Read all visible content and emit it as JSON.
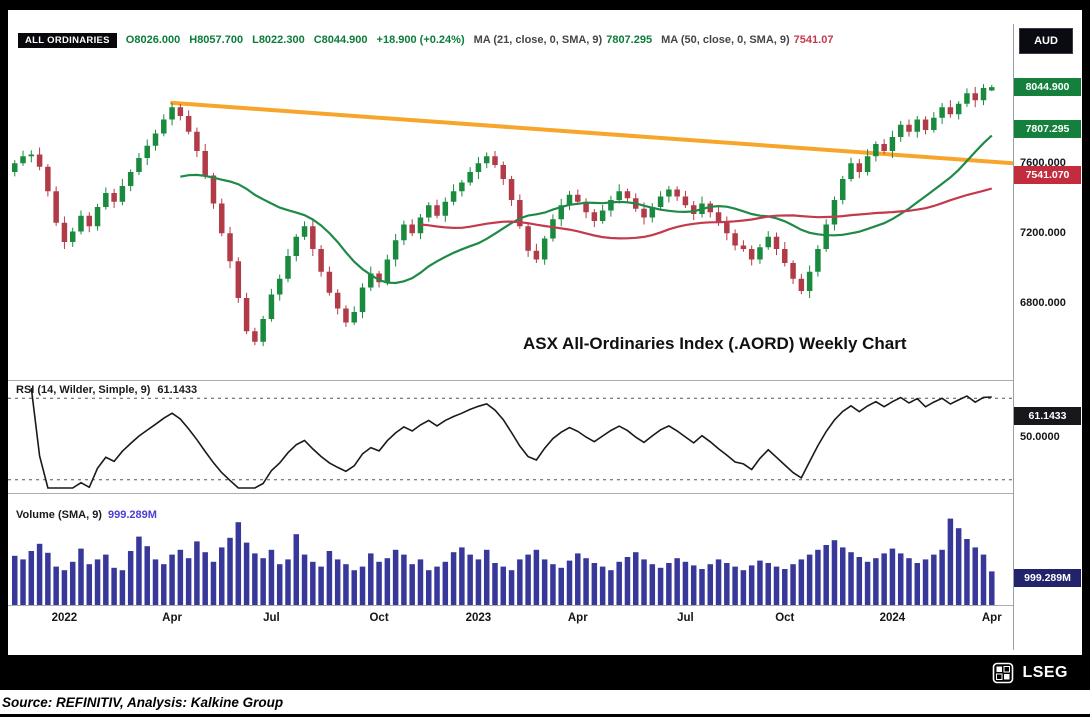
{
  "header": {
    "instrument": "ALL ORDINARIES",
    "ohlc": [
      {
        "k": "O",
        "v": "8026.000"
      },
      {
        "k": "H",
        "v": "8057.700"
      },
      {
        "k": "L",
        "v": "8022.300"
      },
      {
        "k": "C",
        "v": "8044.900"
      }
    ],
    "change": "+18.900 (+0.24%)",
    "ma21_label": "MA (21, close, 0, SMA, 9)",
    "ma21_value": "7807.295",
    "ma50_label": "MA (50, close, 0, SMA, 9)",
    "ma50_value": "7541.07",
    "currency_badge": "AUD"
  },
  "price_scale": {
    "last_badge": "8044.900",
    "ma21_badge": "7807.295",
    "gridline_7600": "7600.000",
    "ma50_badge": "7541.070",
    "gridline_7200": "7200.000",
    "gridline_6800": "6800.000"
  },
  "rsi_panel": {
    "label": "RSI (14, Wilder, Simple, 9)",
    "value": "61.1433",
    "badge": "61.1433",
    "gridline_50": "50.0000"
  },
  "volume_panel": {
    "label": "Volume (SMA, 9)",
    "value": "999.289M",
    "badge": "999.289M"
  },
  "annotation": "ASX All-Ordinaries Index (.AORD) Weekly Chart",
  "footer": {
    "lseg": "LSEG",
    "source_line": "Source: REFINITIV, Analysis: Kalkine Group"
  },
  "ui_colors": {
    "badge_green": "#15803d",
    "badge_red": "#c22c3d",
    "badge_navy": "#23236b",
    "badge_black": "#17171c",
    "legend_green": "#0b7c3a",
    "legend_red": "#c23a4c",
    "volume_value_blue": "#4a3fd0"
  },
  "chart_data": [
    {
      "type": "candlestick",
      "title": "ASX All-Ordinaries Index (.AORD) Weekly Chart",
      "timeframe": "weekly",
      "ylim": [
        6430,
        8110
      ],
      "y_ticks": [
        6800,
        7200,
        7600
      ],
      "x_axis_labels": [
        {
          "label": "2022",
          "week": 6
        },
        {
          "label": "Apr",
          "week": 19
        },
        {
          "label": "Jul",
          "week": 31
        },
        {
          "label": "Oct",
          "week": 44
        },
        {
          "label": "2023",
          "week": 56
        },
        {
          "label": "Apr",
          "week": 68
        },
        {
          "label": "Jul",
          "week": 81
        },
        {
          "label": "Oct",
          "week": 93
        },
        {
          "label": "2024",
          "week": 106
        },
        {
          "label": "Apr",
          "week": 118
        }
      ],
      "ohlc_format": "[open, high, low, close]",
      "candles": [
        [
          7560,
          7628,
          7535,
          7610
        ],
        [
          7610,
          7682,
          7595,
          7650
        ],
        [
          7650,
          7684,
          7615,
          7660
        ],
        [
          7660,
          7700,
          7570,
          7590
        ],
        [
          7590,
          7605,
          7420,
          7450
        ],
        [
          7450,
          7478,
          7252,
          7270
        ],
        [
          7270,
          7306,
          7120,
          7160
        ],
        [
          7160,
          7242,
          7132,
          7220
        ],
        [
          7220,
          7340,
          7204,
          7310
        ],
        [
          7310,
          7330,
          7216,
          7250
        ],
        [
          7250,
          7378,
          7225,
          7360
        ],
        [
          7360,
          7472,
          7345,
          7440
        ],
        [
          7440,
          7464,
          7355,
          7390
        ],
        [
          7390,
          7520,
          7370,
          7480
        ],
        [
          7480,
          7575,
          7450,
          7560
        ],
        [
          7560,
          7668,
          7542,
          7640
        ],
        [
          7640,
          7746,
          7600,
          7710
        ],
        [
          7710,
          7802,
          7682,
          7780
        ],
        [
          7780,
          7890,
          7764,
          7860
        ],
        [
          7860,
          7955,
          7826,
          7930
        ],
        [
          7930,
          7948,
          7855,
          7880
        ],
        [
          7880,
          7912,
          7775,
          7790
        ],
        [
          7790,
          7814,
          7645,
          7680
        ],
        [
          7680,
          7720,
          7520,
          7540
        ],
        [
          7540,
          7555,
          7350,
          7380
        ],
        [
          7380,
          7408,
          7192,
          7210
        ],
        [
          7210,
          7246,
          7010,
          7050
        ],
        [
          7050,
          7072,
          6812,
          6840
        ],
        [
          6840,
          6870,
          6634,
          6650
        ],
        [
          6650,
          6670,
          6570,
          6590
        ],
        [
          6590,
          6738,
          6565,
          6720
        ],
        [
          6720,
          6892,
          6705,
          6860
        ],
        [
          6860,
          6974,
          6825,
          6950
        ],
        [
          6950,
          7120,
          6930,
          7080
        ],
        [
          7080,
          7205,
          7050,
          7190
        ],
        [
          7190,
          7278,
          7172,
          7250
        ],
        [
          7250,
          7286,
          7080,
          7120
        ],
        [
          7120,
          7142,
          6962,
          6990
        ],
        [
          6990,
          7020,
          6854,
          6870
        ],
        [
          6870,
          6890,
          6746,
          6780
        ],
        [
          6780,
          6798,
          6675,
          6700
        ],
        [
          6700,
          6792,
          6685,
          6760
        ],
        [
          6760,
          6924,
          6725,
          6900
        ],
        [
          6900,
          7020,
          6880,
          6980
        ],
        [
          6980,
          6995,
          6900,
          6930
        ],
        [
          6930,
          7088,
          6912,
          7060
        ],
        [
          7060,
          7206,
          7020,
          7170
        ],
        [
          7170,
          7282,
          7142,
          7260
        ],
        [
          7260,
          7290,
          7194,
          7210
        ],
        [
          7210,
          7320,
          7176,
          7300
        ],
        [
          7300,
          7388,
          7275,
          7370
        ],
        [
          7370,
          7402,
          7295,
          7310
        ],
        [
          7310,
          7414,
          7275,
          7390
        ],
        [
          7390,
          7490,
          7370,
          7450
        ],
        [
          7450,
          7515,
          7420,
          7500
        ],
        [
          7500,
          7588,
          7482,
          7560
        ],
        [
          7560,
          7646,
          7520,
          7610
        ],
        [
          7610,
          7672,
          7582,
          7650
        ],
        [
          7650,
          7680,
          7584,
          7600
        ],
        [
          7600,
          7620,
          7486,
          7520
        ],
        [
          7520,
          7538,
          7366,
          7400
        ],
        [
          7400,
          7432,
          7235,
          7250
        ],
        [
          7250,
          7274,
          7075,
          7110
        ],
        [
          7110,
          7150,
          7040,
          7060
        ],
        [
          7060,
          7195,
          7030,
          7180
        ],
        [
          7180,
          7318,
          7162,
          7290
        ],
        [
          7290,
          7406,
          7250,
          7370
        ],
        [
          7370,
          7452,
          7342,
          7430
        ],
        [
          7430,
          7460,
          7374,
          7390
        ],
        [
          7390,
          7410,
          7296,
          7330
        ],
        [
          7330,
          7348,
          7245,
          7280
        ],
        [
          7280,
          7372,
          7265,
          7340
        ],
        [
          7340,
          7424,
          7305,
          7400
        ],
        [
          7400,
          7490,
          7380,
          7450
        ],
        [
          7450,
          7465,
          7380,
          7410
        ],
        [
          7410,
          7438,
          7332,
          7350
        ],
        [
          7350,
          7386,
          7260,
          7300
        ],
        [
          7300,
          7382,
          7272,
          7360
        ],
        [
          7360,
          7450,
          7344,
          7420
        ],
        [
          7420,
          7480,
          7386,
          7460
        ],
        [
          7460,
          7478,
          7395,
          7420
        ],
        [
          7420,
          7452,
          7355,
          7370
        ],
        [
          7370,
          7394,
          7285,
          7320
        ],
        [
          7320,
          7420,
          7300,
          7380
        ],
        [
          7380,
          7395,
          7300,
          7330
        ],
        [
          7330,
          7358,
          7252,
          7270
        ],
        [
          7270,
          7306,
          7170,
          7210
        ],
        [
          7210,
          7232,
          7112,
          7140
        ],
        [
          7140,
          7170,
          7104,
          7120
        ],
        [
          7120,
          7140,
          7026,
          7060
        ],
        [
          7060,
          7148,
          7035,
          7130
        ],
        [
          7130,
          7222,
          7115,
          7190
        ],
        [
          7190,
          7214,
          7085,
          7120
        ],
        [
          7120,
          7160,
          7020,
          7040
        ],
        [
          7040,
          7055,
          6920,
          6950
        ],
        [
          6950,
          6978,
          6862,
          6880
        ],
        [
          6880,
          7026,
          6840,
          6990
        ],
        [
          6990,
          7142,
          6962,
          7120
        ],
        [
          7120,
          7290,
          7104,
          7260
        ],
        [
          7260,
          7420,
          7226,
          7400
        ],
        [
          7400,
          7538,
          7375,
          7520
        ],
        [
          7520,
          7642,
          7505,
          7610
        ],
        [
          7610,
          7634,
          7525,
          7560
        ],
        [
          7560,
          7690,
          7540,
          7650
        ],
        [
          7650,
          7735,
          7620,
          7720
        ],
        [
          7720,
          7748,
          7662,
          7680
        ],
        [
          7680,
          7796,
          7640,
          7760
        ],
        [
          7760,
          7852,
          7732,
          7830
        ],
        [
          7830,
          7860,
          7762,
          7790
        ],
        [
          7790,
          7880,
          7756,
          7860
        ],
        [
          7860,
          7878,
          7775,
          7800
        ],
        [
          7800,
          7902,
          7785,
          7870
        ],
        [
          7870,
          7954,
          7835,
          7930
        ],
        [
          7930,
          7970,
          7870,
          7890
        ],
        [
          7890,
          7965,
          7860,
          7950
        ],
        [
          7950,
          8038,
          7932,
          8010
        ],
        [
          8010,
          8046,
          7930,
          7970
        ],
        [
          7970,
          8062,
          7942,
          8040
        ],
        [
          8026,
          8057.7,
          8022.3,
          8044.9
        ]
      ],
      "overlays": [
        {
          "name": "SMA 21",
          "last": 7807.295
        },
        {
          "name": "SMA 50",
          "last": 7541.07
        }
      ],
      "trendline": {
        "from_week": 19,
        "from_price": 7955,
        "to_price": 7610,
        "note": "descending orange resistance line to right edge"
      },
      "last": {
        "open": 8026.0,
        "high": 8057.7,
        "low": 8022.3,
        "close": 8044.9,
        "change": 18.9,
        "change_pct": 0.24
      },
      "colors": {
        "up": "#1a8a3f",
        "down": "#b23b48",
        "ma21": "#1f8a47",
        "ma50": "#c23a4c",
        "trendline": "#f7a52b"
      }
    },
    {
      "type": "line",
      "name": "RSI (14, Wilder, Simple, 9)",
      "derived_from": "weekly closes above",
      "last": 61.1433,
      "gridlines": [
        30,
        50,
        70
      ],
      "color": "#1a1a1a"
    },
    {
      "type": "bar",
      "name": "Volume",
      "unit": "millions",
      "sma9_last": 999.289,
      "color": "#38389b",
      "values": [
        820,
        760,
        900,
        1020,
        870,
        640,
        580,
        720,
        940,
        680,
        760,
        840,
        620,
        580,
        900,
        1140,
        980,
        760,
        680,
        840,
        920,
        780,
        1060,
        880,
        720,
        960,
        1120,
        1380,
        1040,
        860,
        780,
        920,
        680,
        760,
        1180,
        840,
        720,
        640,
        900,
        760,
        680,
        580,
        640,
        860,
        720,
        780,
        920,
        840,
        680,
        760,
        580,
        640,
        720,
        880,
        960,
        840,
        760,
        920,
        700,
        640,
        580,
        760,
        840,
        920,
        760,
        680,
        620,
        740,
        860,
        780,
        700,
        640,
        580,
        720,
        800,
        880,
        760,
        680,
        620,
        700,
        780,
        720,
        660,
        600,
        680,
        760,
        700,
        640,
        580,
        660,
        740,
        700,
        640,
        600,
        680,
        760,
        840,
        920,
        1000,
        1080,
        960,
        880,
        800,
        720,
        780,
        860,
        940,
        860,
        780,
        700,
        760,
        840,
        920,
        1440,
        1280,
        1100,
        960,
        840,
        560
      ]
    }
  ]
}
